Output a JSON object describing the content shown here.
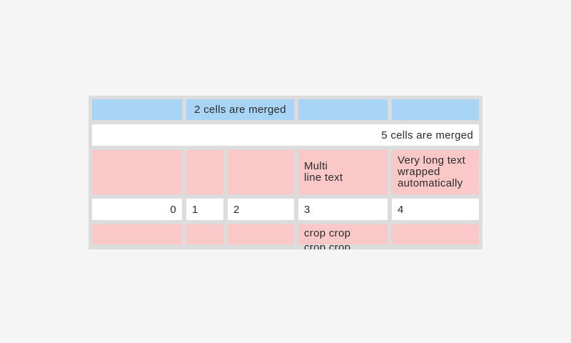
{
  "colors": {
    "page_background": "#f5f5f5",
    "table_frame": "#dcdcdc",
    "cell_blue": "#a8d5f6",
    "cell_pink": "#fbc8c8",
    "cell_white": "#ffffff",
    "text": "#2b2b2b"
  },
  "table": {
    "rows": [
      {
        "cells": [
          {
            "bg": "blue",
            "text": ""
          },
          {
            "bg": "blue",
            "span": 2,
            "align": "center",
            "text": "2 cells are merged"
          },
          {
            "bg": "blue",
            "text": ""
          },
          {
            "bg": "blue",
            "text": ""
          }
        ]
      },
      {
        "cells": [
          {
            "bg": "white",
            "span": 5,
            "align": "right",
            "text": "5 cells are merged"
          }
        ]
      },
      {
        "cells": [
          {
            "bg": "pink",
            "text": ""
          },
          {
            "bg": "pink",
            "text": ""
          },
          {
            "bg": "pink",
            "text": ""
          },
          {
            "bg": "pink",
            "align": "left",
            "text": "Multi\nline text"
          },
          {
            "bg": "pink",
            "align": "left",
            "text": "Very long text wrapped automatically"
          }
        ]
      },
      {
        "cells": [
          {
            "bg": "white",
            "align": "right",
            "text": "0"
          },
          {
            "bg": "white",
            "align": "left",
            "text": "1"
          },
          {
            "bg": "white",
            "align": "left",
            "text": "2"
          },
          {
            "bg": "white",
            "align": "left",
            "text": "3"
          },
          {
            "bg": "white",
            "align": "left",
            "text": "4"
          }
        ]
      },
      {
        "cells": [
          {
            "bg": "pink",
            "text": ""
          },
          {
            "bg": "pink",
            "text": ""
          },
          {
            "bg": "pink",
            "text": ""
          },
          {
            "bg": "pink",
            "align": "left",
            "cropped": true,
            "text": "crop crop crop crop"
          },
          {
            "bg": "pink",
            "text": ""
          }
        ]
      }
    ]
  }
}
